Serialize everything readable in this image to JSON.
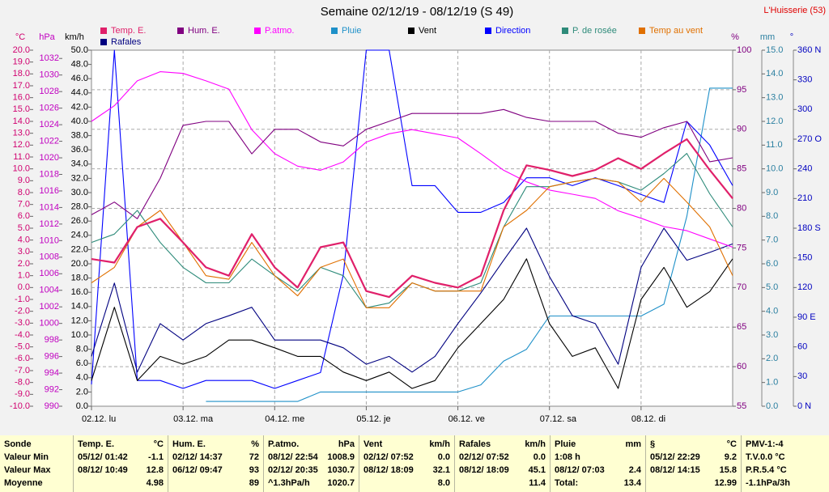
{
  "chart_data": {
    "type": "line",
    "title": "Semaine 02/12/19 - 08/12/19 (S 49)",
    "station": "L'Huisserie (53)",
    "categories": [
      "02.12. lu",
      null,
      null,
      null,
      "03.12. ma",
      null,
      null,
      null,
      "04.12. me",
      null,
      null,
      null,
      "05.12. je",
      null,
      null,
      null,
      "06.12. ve",
      null,
      null,
      null,
      "07.12. sa",
      null,
      null,
      null,
      "08.12. di",
      null,
      null,
      null,
      null
    ],
    "grid": true,
    "axes": {
      "c": {
        "label": "°C",
        "color": "#d0006f",
        "lim": [
          -10,
          20
        ],
        "ticks": [
          {
            "value": 20,
            "label": "20.0"
          },
          {
            "value": 19,
            "label": "19.0"
          },
          {
            "value": 18,
            "label": "18.0"
          },
          {
            "value": 17,
            "label": "17.0"
          },
          {
            "value": 16,
            "label": "16.0"
          },
          {
            "value": 15,
            "label": "15.0"
          },
          {
            "value": 14,
            "label": "14.0"
          },
          {
            "value": 13,
            "label": "13.0"
          },
          {
            "value": 12,
            "label": "12.0"
          },
          {
            "value": 11,
            "label": "11.0"
          },
          {
            "value": 10,
            "label": "10.0"
          },
          {
            "value": 9,
            "label": "9.0"
          },
          {
            "value": 8,
            "label": "8.0"
          },
          {
            "value": 7,
            "label": "7.0"
          },
          {
            "value": 6,
            "label": "6.0"
          },
          {
            "value": 5,
            "label": "5.0"
          },
          {
            "value": 4,
            "label": "4.0"
          },
          {
            "value": 3,
            "label": "3.0"
          },
          {
            "value": 2,
            "label": "2.0"
          },
          {
            "value": 1,
            "label": "1.0"
          },
          {
            "value": 0,
            "label": "0.0"
          },
          {
            "value": -1,
            "label": "-1.0"
          },
          {
            "value": -2,
            "label": "-2.0"
          },
          {
            "value": -3,
            "label": "-3.0"
          },
          {
            "value": -4,
            "label": "-4.0"
          },
          {
            "value": -5,
            "label": "-5.0"
          },
          {
            "value": -6,
            "label": "-6.0"
          },
          {
            "value": -7,
            "label": "-7.0"
          },
          {
            "value": -8,
            "label": "-8.0"
          },
          {
            "value": -9,
            "label": "-9.0"
          },
          {
            "value": -10,
            "label": "-10.0"
          }
        ]
      },
      "hpa": {
        "label": "hPa",
        "color": "#c000c0",
        "lim": [
          990,
          1033
        ],
        "ticks": [
          1032,
          1030,
          1028,
          1026,
          1024,
          1022,
          1020,
          1018,
          1016,
          1014,
          1012,
          1010,
          1008,
          1006,
          1004,
          1002,
          1000,
          998,
          996,
          994,
          992,
          990
        ]
      },
      "kmh": {
        "label": "km/h",
        "color": "#000000",
        "lim": [
          0,
          50
        ],
        "ticks": [
          {
            "value": 50,
            "label": "50.0"
          },
          {
            "value": 48,
            "label": "48.0"
          },
          {
            "value": 46,
            "label": "46.0"
          },
          {
            "value": 44,
            "label": "44.0"
          },
          {
            "value": 42,
            "label": "42.0"
          },
          {
            "value": 40,
            "label": "40.0"
          },
          {
            "value": 38,
            "label": "38.0"
          },
          {
            "value": 36,
            "label": "36.0"
          },
          {
            "value": 34,
            "label": "34.0"
          },
          {
            "value": 32,
            "label": "32.0"
          },
          {
            "value": 30,
            "label": "30.0"
          },
          {
            "value": 28,
            "label": "28.0"
          },
          {
            "value": 26,
            "label": "26.0"
          },
          {
            "value": 24,
            "label": "24.0"
          },
          {
            "value": 22,
            "label": "22.0"
          },
          {
            "value": 20,
            "label": "20.0"
          },
          {
            "value": 18,
            "label": "18.0"
          },
          {
            "value": 16,
            "label": "16.0"
          },
          {
            "value": 14,
            "label": "14.0"
          },
          {
            "value": 12,
            "label": "12.0"
          },
          {
            "value": 10,
            "label": "10.0"
          },
          {
            "value": 8,
            "label": "8.0"
          },
          {
            "value": 6,
            "label": "6.0"
          },
          {
            "value": 4,
            "label": "4.0"
          },
          {
            "value": 2,
            "label": "2.0"
          },
          {
            "value": 0,
            "label": "0.0"
          }
        ]
      },
      "pct": {
        "label": "%",
        "color": "#800080",
        "lim": [
          55,
          100
        ],
        "ticks": [
          100,
          95,
          90,
          85,
          80,
          75,
          70,
          65,
          60,
          55
        ]
      },
      "mm": {
        "label": "mm",
        "color": "#2a7fa0",
        "lim": [
          0,
          15
        ],
        "ticks": [
          {
            "value": 15,
            "label": "15.0"
          },
          {
            "value": 14,
            "label": "14.0"
          },
          {
            "value": 13,
            "label": "13.0"
          },
          {
            "value": 12,
            "label": "12.0"
          },
          {
            "value": 11,
            "label": "11.0"
          },
          {
            "value": 10,
            "label": "10.0"
          },
          {
            "value": 9,
            "label": "9.0"
          },
          {
            "value": 8,
            "label": "8.0"
          },
          {
            "value": 7,
            "label": "7.0"
          },
          {
            "value": 6,
            "label": "6.0"
          },
          {
            "value": 5,
            "label": "5.0"
          },
          {
            "value": 4,
            "label": "4.0"
          },
          {
            "value": 3,
            "label": "3.0"
          },
          {
            "value": 2,
            "label": "2.0"
          },
          {
            "value": 1,
            "label": "1.0"
          },
          {
            "value": 0,
            "label": "0.0"
          }
        ]
      },
      "deg": {
        "label": "°",
        "color": "#0000c0",
        "lim": [
          0,
          360
        ],
        "ticks": [
          {
            "value": 360,
            "label": "360 N"
          },
          330,
          300,
          {
            "value": 270,
            "label": "270 O"
          },
          240,
          210,
          {
            "value": 180,
            "label": "180 S"
          },
          150,
          120,
          {
            "value": 90,
            "label": "90 E"
          },
          60,
          30,
          {
            "value": 0,
            "label": "0 N"
          }
        ]
      }
    },
    "series": [
      {
        "name": "Temp. E.",
        "color": "#e0206a",
        "axis": "c",
        "values": [
          2.4,
          2.1,
          5.1,
          5.8,
          3.8,
          1.7,
          1.0,
          4.5,
          1.7,
          0.0,
          3.4,
          3.8,
          -0.3,
          -0.8,
          1.0,
          0.4,
          0.0,
          1.0,
          6.5,
          10.3,
          9.9,
          9.4,
          9.9,
          10.9,
          10.0,
          11.3,
          12.5,
          9.9,
          7.5
        ]
      },
      {
        "name": "Hum. E.",
        "color": "#800080",
        "axis": "pct",
        "values": [
          79.2,
          80.8,
          78.7,
          83.8,
          90.5,
          91.0,
          91.0,
          86.9,
          90.0,
          90.0,
          88.4,
          87.9,
          90.0,
          91.0,
          92.0,
          92.0,
          92.0,
          92.0,
          92.5,
          91.5,
          91.0,
          91.0,
          91.0,
          89.5,
          89.0,
          90.2,
          91.0,
          85.9,
          86.4
        ]
      },
      {
        "name": "P.atmo.",
        "color": "#ff00ff",
        "axis": "hpa",
        "values": [
          1024.4,
          1026.3,
          1029.3,
          1030.4,
          1030.2,
          1029.3,
          1028.3,
          1023.4,
          1020.5,
          1019.0,
          1018.5,
          1019.5,
          1021.9,
          1022.9,
          1023.4,
          1022.9,
          1022.4,
          1020.5,
          1018.5,
          1017.1,
          1016.1,
          1015.6,
          1015.1,
          1013.6,
          1012.7,
          1011.7,
          1011.2,
          1010.2,
          1009.2
        ]
      },
      {
        "name": "Pluie",
        "color": "#1e90c8",
        "axis": "mm",
        "values": [
          null,
          null,
          null,
          null,
          null,
          0.2,
          0.2,
          0.2,
          0.2,
          0.2,
          0.6,
          0.6,
          0.6,
          0.6,
          0.6,
          0.6,
          0.6,
          0.9,
          1.9,
          2.4,
          3.8,
          3.8,
          3.8,
          3.8,
          3.8,
          4.3,
          8.0,
          13.4,
          13.4
        ]
      },
      {
        "name": "Vent",
        "color": "#000000",
        "axis": "kmh",
        "values": [
          3.6,
          13.9,
          3.6,
          7.0,
          5.9,
          7.0,
          9.3,
          9.3,
          8.2,
          7.0,
          7.0,
          4.8,
          3.6,
          4.8,
          2.5,
          3.6,
          8.2,
          11.6,
          15.0,
          20.7,
          11.6,
          7.0,
          8.2,
          2.5,
          15.0,
          19.5,
          13.9,
          16.1,
          20.7
        ]
      },
      {
        "name": "Direction",
        "color": "#0000ff",
        "axis": "deg",
        "values": [
          22,
          360,
          26,
          26,
          18,
          26,
          26,
          26,
          18,
          26,
          34,
          133,
          360,
          360,
          223,
          223,
          196,
          196,
          206,
          231,
          231,
          223,
          231,
          223,
          214,
          206,
          288,
          264,
          223
        ]
      },
      {
        "name": "P. de rosée",
        "color": "#2e8b7a",
        "axis": "c",
        "values": [
          3.8,
          4.5,
          6.5,
          3.8,
          1.7,
          0.4,
          0.4,
          2.4,
          1.0,
          -0.3,
          1.7,
          1.0,
          -1.7,
          -1.3,
          0.4,
          -0.3,
          -0.3,
          0.4,
          5.1,
          8.5,
          8.5,
          8.9,
          9.2,
          8.9,
          8.2,
          9.6,
          11.3,
          7.9,
          5.1
        ]
      },
      {
        "name": "Temp au vent",
        "color": "#e07000",
        "axis": "c",
        "values": [
          0.4,
          1.7,
          5.1,
          6.5,
          3.8,
          1.0,
          0.7,
          3.8,
          1.0,
          -0.7,
          1.7,
          2.4,
          -1.7,
          -1.7,
          0.4,
          -0.3,
          -0.3,
          -0.3,
          5.1,
          6.5,
          8.5,
          8.9,
          9.2,
          8.9,
          7.2,
          9.2,
          7.2,
          5.1,
          1.0
        ]
      },
      {
        "name": "Rafales",
        "color": "#000080",
        "axis": "kmh",
        "values": [
          7.0,
          17.3,
          4.8,
          11.6,
          9.3,
          11.6,
          12.7,
          13.9,
          9.3,
          9.3,
          9.3,
          8.2,
          5.9,
          7.0,
          4.8,
          7.0,
          11.6,
          15.9,
          20.5,
          25.0,
          18.2,
          12.7,
          11.6,
          5.9,
          19.5,
          25.0,
          20.5,
          21.6,
          22.8
        ]
      }
    ]
  },
  "summary": {
    "row_labels": [
      "Sonde",
      "Valeur Min",
      "Valeur Max",
      "Moyenne"
    ],
    "groups": [
      {
        "name": "Temp. E.",
        "unit": "°C",
        "rows": [
          {
            "left": "05/12/ 01:42",
            "right": "-1.1"
          },
          {
            "left": "08/12/ 10:49",
            "right": "12.8"
          },
          {
            "right": "4.98"
          }
        ]
      },
      {
        "name": "Hum. E.",
        "unit": "%",
        "rows": [
          {
            "left": "02/12/ 14:37",
            "right": "72"
          },
          {
            "left": "06/12/ 09:47",
            "right": "93"
          },
          {
            "right": "89"
          }
        ]
      },
      {
        "name": "P.atmo.",
        "unit": "hPa",
        "rows": [
          {
            "left": "08/12/ 22:54",
            "right": "1008.9"
          },
          {
            "left": "02/12/ 20:35",
            "right": "1030.7"
          },
          {
            "left": "^1.3hPa/h",
            "right": "1020.7"
          }
        ]
      },
      {
        "name": "Vent",
        "unit": "km/h",
        "rows": [
          {
            "left": "02/12/ 07:52",
            "right": "0.0"
          },
          {
            "left": "08/12/ 18:09",
            "right": "32.1"
          },
          {
            "right": "8.0"
          }
        ]
      },
      {
        "name": "Rafales",
        "unit": "km/h",
        "rows": [
          {
            "left": "02/12/ 07:52",
            "right": "0.0"
          },
          {
            "left": "08/12/ 18:09",
            "right": "45.1"
          },
          {
            "right": "11.4"
          }
        ]
      },
      {
        "name": "Pluie",
        "unit": "mm",
        "rows": [
          {
            "left": "1:08 h"
          },
          {
            "left": "08/12/ 07:03",
            "right": "2.4"
          },
          {
            "left": "Total:",
            "right": "13.4"
          }
        ]
      },
      {
        "name": "§",
        "unit": "°C",
        "rows": [
          {
            "left": "05/12/ 22:29",
            "right": "9.2"
          },
          {
            "left": "08/12/ 14:15",
            "right": "15.8"
          },
          {
            "right": "12.99"
          }
        ]
      },
      {
        "name": "PMV-1:-4",
        "rows": [
          {
            "left": "T.V.0.0 °C"
          },
          {
            "left": "P.R.5.4 °C"
          },
          {
            "left": "-1.1hPa/3h"
          }
        ]
      }
    ]
  }
}
